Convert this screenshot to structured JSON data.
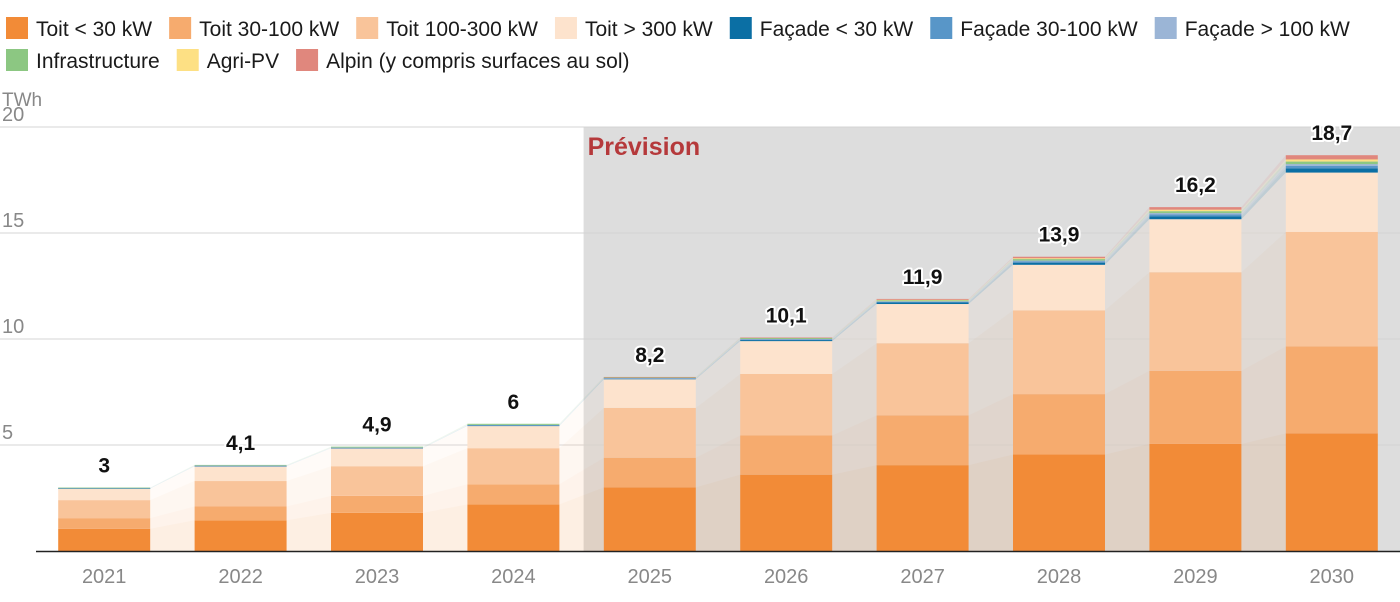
{
  "chart_data": {
    "type": "bar",
    "stacked": true,
    "unit": "TWh",
    "ylim": [
      0,
      20
    ],
    "yticks": [
      5,
      10,
      15,
      20
    ],
    "forecast_label": "Prévision",
    "forecast_start_category": "2025",
    "categories": [
      "2021",
      "2022",
      "2023",
      "2024",
      "2025",
      "2026",
      "2027",
      "2028",
      "2029",
      "2030"
    ],
    "totals": [
      "3",
      "4,1",
      "4,9",
      "6",
      "8,2",
      "10,1",
      "11,9",
      "13,9",
      "16,2",
      "18,7"
    ],
    "series": [
      {
        "name": "Toit < 30 kW",
        "color": "#f28b37",
        "values": [
          1.05,
          1.45,
          1.8,
          2.2,
          3.0,
          3.6,
          4.05,
          4.55,
          5.05,
          5.55
        ]
      },
      {
        "name": "Toit 30-100 kW",
        "color": "#f6ab6e",
        "values": [
          0.5,
          0.65,
          0.8,
          0.95,
          1.4,
          1.85,
          2.35,
          2.85,
          3.45,
          4.1
        ]
      },
      {
        "name": "Toit 100-300 kW",
        "color": "#f9c49a",
        "values": [
          0.85,
          1.2,
          1.4,
          1.7,
          2.35,
          2.9,
          3.4,
          3.95,
          4.65,
          5.4
        ]
      },
      {
        "name": "Toit > 300 kW",
        "color": "#fde3cd",
        "values": [
          0.55,
          0.7,
          0.85,
          1.05,
          1.35,
          1.55,
          1.85,
          2.15,
          2.5,
          2.8
        ]
      },
      {
        "name": "Façade < 30 kW",
        "color": "#0b6fa4",
        "values": [
          0.01,
          0.01,
          0.01,
          0.02,
          0.03,
          0.05,
          0.07,
          0.1,
          0.14,
          0.2
        ]
      },
      {
        "name": "Façade 30-100 kW",
        "color": "#5896c8",
        "values": [
          0.01,
          0.01,
          0.01,
          0.02,
          0.02,
          0.03,
          0.04,
          0.06,
          0.09,
          0.12
        ]
      },
      {
        "name": "Façade > 100 kW",
        "color": "#9bb5d6",
        "values": [
          0.01,
          0.01,
          0.01,
          0.01,
          0.01,
          0.02,
          0.02,
          0.04,
          0.06,
          0.08
        ]
      },
      {
        "name": "Infrastructure",
        "color": "#8cc782",
        "values": [
          0.01,
          0.03,
          0.04,
          0.05,
          0.04,
          0.05,
          0.05,
          0.07,
          0.09,
          0.12
        ]
      },
      {
        "name": "Agri-PV",
        "color": "#fde084",
        "values": [
          0.0,
          0.0,
          0.0,
          0.0,
          0.0,
          0.0,
          0.02,
          0.04,
          0.07,
          0.1
        ]
      },
      {
        "name": "Alpin (y compris surfaces au sol)",
        "color": "#e0877d",
        "values": [
          0.0,
          0.0,
          0.0,
          0.0,
          0.01,
          0.02,
          0.04,
          0.07,
          0.12,
          0.2
        ]
      }
    ],
    "forecast_background": "#dddddd",
    "forecast_label_color": "#b5393b"
  }
}
